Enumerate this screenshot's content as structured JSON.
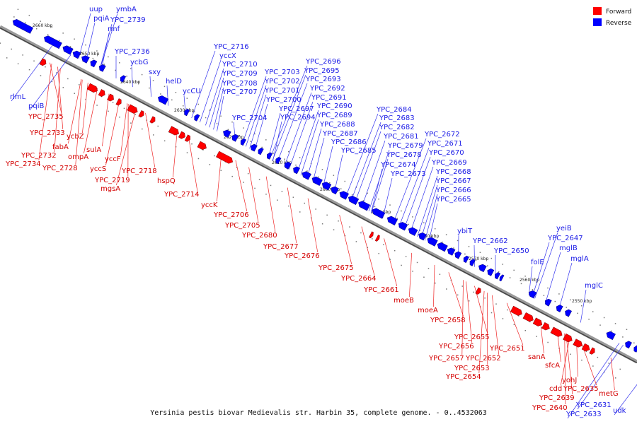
{
  "caption": "Yersinia pestis biovar Medievalis str. Harbin 35, complete genome. - 0..4532063",
  "legend": [
    {
      "label": "Forward",
      "color": "#ff0000"
    },
    {
      "label": "Reverse",
      "color": "#0000ff"
    }
  ],
  "ticks": [
    "2660 kbp",
    "2650 kbp",
    "2640 kbp",
    "2630 kbp",
    "2620 kbp",
    "2610 kbp",
    "2600 kbp",
    "2590 kbp",
    "2580 kbp",
    "2570 kbp",
    "2560 kbp",
    "2550 kbp"
  ],
  "reverse_genes": [
    "uup",
    "pqiA",
    "ymbA",
    "YPC_2739",
    "rmf",
    "YPC_2736",
    "ycbG",
    "sxy",
    "rlmL",
    "pqiB",
    "helD",
    "ycCU",
    "YPC_2716",
    "yccX",
    "YPC_2710",
    "YPC_2709",
    "YPC_2708",
    "YPC_2707",
    "YPC_2704",
    "YPC_2703",
    "YPC_2702",
    "YPC_2701",
    "YPC_2700",
    "YPC_2697",
    "YPC_2694",
    "YPC_2696",
    "YPC_2695",
    "YPC_2693",
    "YPC_2692",
    "YPC_2691",
    "YPC_2690",
    "YPC_2689",
    "YPC_2688",
    "YPC_2687",
    "YPC_2686",
    "YPC_2685",
    "YPC_2684",
    "YPC_2683",
    "YPC_2682",
    "YPC_2681",
    "YPC_2679",
    "YPC_2678",
    "YPC_2674",
    "YPC_2673",
    "YPC_2672",
    "YPC_2671",
    "YPC_2670",
    "YPC_2669",
    "YPC_2668",
    "YPC_2667",
    "YPC_2666",
    "YPC_2665",
    "ybiT",
    "YPC_2662",
    "YPC_2650",
    "folE",
    "yeiB",
    "YPC_2647",
    "mglB",
    "mglA",
    "mglC",
    "YPC_2631",
    "YPC_2633",
    "udk"
  ],
  "forward_genes": [
    "YPC_2735",
    "YPC_2733",
    "ycbZ",
    "fabA",
    "YPC_2732",
    "YPC_2734",
    "ompA",
    "YPC_2728",
    "sulA",
    "yccS",
    "yccF",
    "YPC_2718",
    "YPC_2719",
    "mgsA",
    "hspQ",
    "YPC_2714",
    "yccK",
    "YPC_2706",
    "YPC_2705",
    "YPC_2680",
    "YPC_2677",
    "YPC_2676",
    "YPC_2675",
    "YPC_2664",
    "YPC_2661",
    "moeB",
    "moeA",
    "YPC_2658",
    "YPC_2655",
    "YPC_2656",
    "YPC_2651",
    "YPC_2657",
    "YPC_2652",
    "YPC_2653",
    "YPC_2654",
    "sanA",
    "sfcA",
    "yohJ",
    "cdd",
    "YPC_2635",
    "YPC_2639",
    "YPC_2640",
    "metG"
  ]
}
